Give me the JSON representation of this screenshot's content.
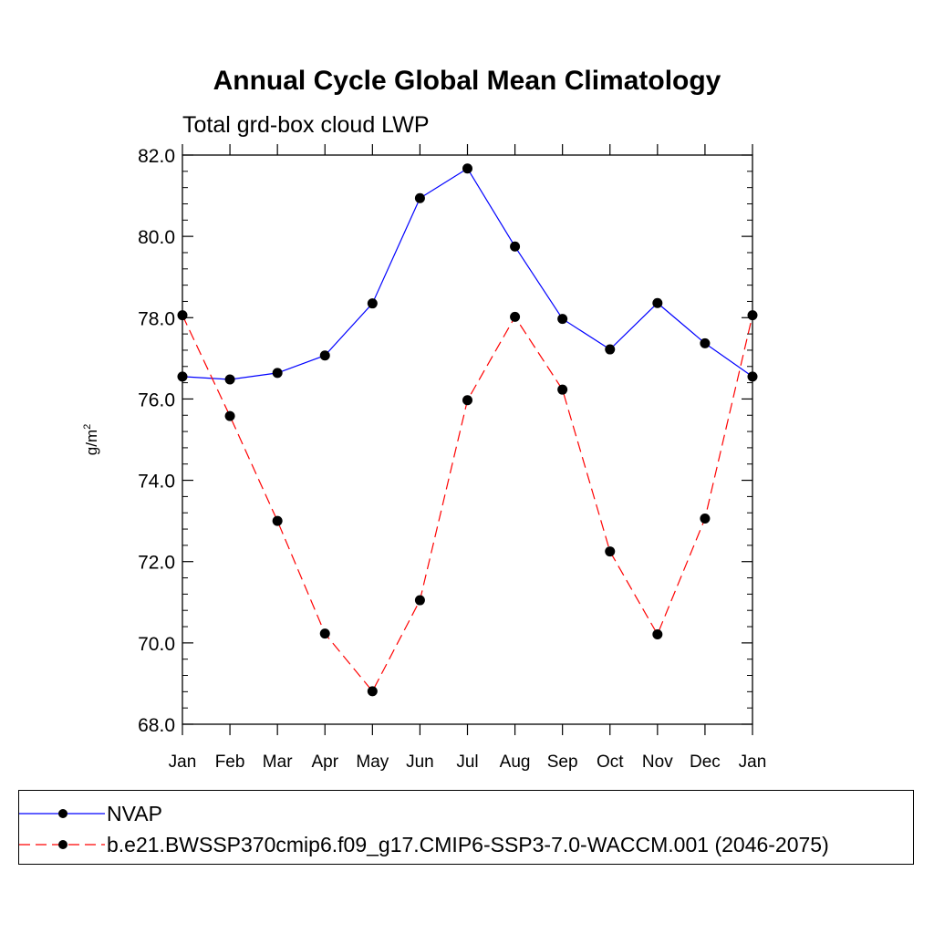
{
  "chart_data": {
    "type": "line",
    "title": "Annual Cycle Global Mean Climatology",
    "subtitle": "Total grd-box cloud LWP",
    "ylabel": "g/m",
    "ylabel_superscript": "2",
    "xlabel": "",
    "categories": [
      "Jan",
      "Feb",
      "Mar",
      "Apr",
      "May",
      "Jun",
      "Jul",
      "Aug",
      "Sep",
      "Oct",
      "Nov",
      "Dec",
      "Jan"
    ],
    "ylim": [
      68.0,
      82.0
    ],
    "yticks": [
      "68.0",
      "70.0",
      "72.0",
      "74.0",
      "76.0",
      "78.0",
      "80.0",
      "82.0"
    ],
    "series": [
      {
        "name": "NVAP",
        "color": "#0000ff",
        "dash": "solid",
        "values": [
          76.55,
          76.48,
          76.64,
          77.07,
          78.35,
          80.94,
          81.67,
          79.75,
          77.97,
          77.22,
          78.36,
          77.37,
          76.55
        ]
      },
      {
        "name": "b.e21.BWSSP370cmip6.f09_g17.CMIP6-SSP3-7.0-WACCM.001 (2046-2075)",
        "color": "#ff0000",
        "dash": "dashed",
        "values": [
          78.06,
          75.58,
          73.0,
          70.23,
          68.81,
          71.05,
          75.97,
          78.02,
          76.23,
          72.25,
          70.21,
          73.06,
          78.06
        ]
      }
    ],
    "legend": "bottom"
  }
}
